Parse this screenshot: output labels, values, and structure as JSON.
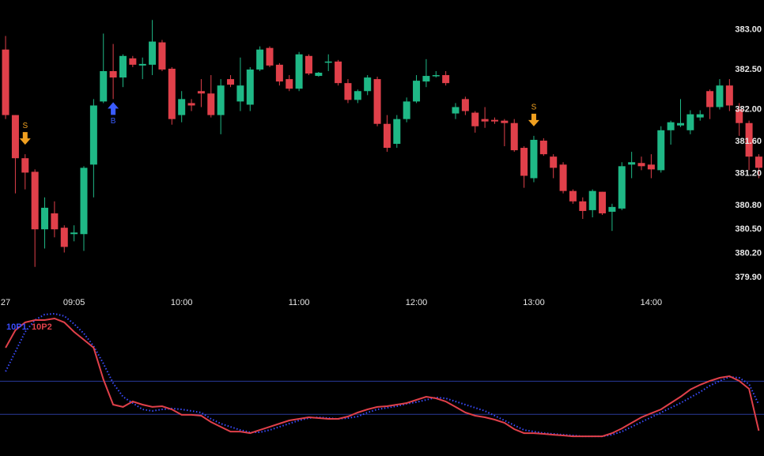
{
  "chart_data": [
    {
      "type": "candlestick",
      "open": [
        382.75,
        381.93,
        381.39,
        381.22,
        380.5,
        380.7,
        380.52,
        380.44,
        380.44,
        381.31,
        382.1,
        382.48,
        382.4,
        382.64,
        382.55,
        382.56,
        382.84,
        382.51,
        381.93,
        382.08,
        382.23,
        382.2,
        381.93,
        382.38,
        382.1,
        382.06,
        382.5,
        382.77,
        382.56,
        382.38,
        382.26,
        382.67,
        382.42,
        382.59,
        382.6,
        382.33,
        382.12,
        382.23,
        382.38,
        381.82,
        381.57,
        381.88,
        382.1,
        382.35,
        382.42,
        382.43,
        381.95,
        382.13,
        381.96,
        381.88,
        381.87,
        381.86,
        381.83,
        381.52,
        381.14,
        381.61,
        381.41,
        381.31,
        380.98,
        380.85,
        380.74,
        380.97,
        380.72,
        380.76,
        381.31,
        381.33,
        381.31,
        381.24,
        381.74,
        381.8,
        381.74,
        381.9,
        382.23,
        382.03,
        382.3,
        382.0,
        381.83,
        381.41
      ],
      "high": [
        382.92,
        381.93,
        381.44,
        381.25,
        380.9,
        380.85,
        380.55,
        380.55,
        381.29,
        382.13,
        382.95,
        382.82,
        382.69,
        382.67,
        382.65,
        383.12,
        382.87,
        382.53,
        382.23,
        382.13,
        382.38,
        382.43,
        382.38,
        382.43,
        382.65,
        382.53,
        382.79,
        382.79,
        382.58,
        382.43,
        382.72,
        382.69,
        382.47,
        382.69,
        382.62,
        382.38,
        382.25,
        382.43,
        382.41,
        381.93,
        381.93,
        382.15,
        382.43,
        382.63,
        382.48,
        382.48,
        382.08,
        382.16,
        381.98,
        382.03,
        381.9,
        381.88,
        381.88,
        381.54,
        381.67,
        381.64,
        381.44,
        381.34,
        381.0,
        380.9,
        381.0,
        380.97,
        380.82,
        381.34,
        381.47,
        381.41,
        381.44,
        381.79,
        381.86,
        382.13,
        381.99,
        381.99,
        382.25,
        382.38,
        382.38,
        382.08,
        381.86,
        381.44
      ],
      "low": [
        381.88,
        380.95,
        381.0,
        380.03,
        380.26,
        380.4,
        380.21,
        380.35,
        380.23,
        380.9,
        382.08,
        382.13,
        382.28,
        382.53,
        382.38,
        382.43,
        382.48,
        381.81,
        381.84,
        381.98,
        382.03,
        381.9,
        381.69,
        382.28,
        381.98,
        381.98,
        382.48,
        382.53,
        382.3,
        382.23,
        382.23,
        382.43,
        382.41,
        382.48,
        382.3,
        382.08,
        382.08,
        382.18,
        381.79,
        381.47,
        381.52,
        381.84,
        382.08,
        382.28,
        382.4,
        382.3,
        381.88,
        381.93,
        381.71,
        381.77,
        381.82,
        381.54,
        381.47,
        381.02,
        381.09,
        381.42,
        381.14,
        380.95,
        380.82,
        380.63,
        380.65,
        380.68,
        380.48,
        380.74,
        381.14,
        381.24,
        381.14,
        381.21,
        381.56,
        381.78,
        381.69,
        381.86,
        381.88,
        382.0,
        381.98,
        381.67,
        381.24,
        381.14
      ],
      "close": [
        381.93,
        381.39,
        381.21,
        380.5,
        380.77,
        380.5,
        380.28,
        380.46,
        381.27,
        382.05,
        382.48,
        382.4,
        382.67,
        382.56,
        382.57,
        382.85,
        382.5,
        381.88,
        382.13,
        382.05,
        382.2,
        381.93,
        382.3,
        382.31,
        382.3,
        382.5,
        382.75,
        382.55,
        382.35,
        382.26,
        382.69,
        382.45,
        382.46,
        382.6,
        382.33,
        382.12,
        382.23,
        382.4,
        381.82,
        381.52,
        381.88,
        382.1,
        382.36,
        382.42,
        382.43,
        382.33,
        382.03,
        381.98,
        381.79,
        381.85,
        381.85,
        381.83,
        381.49,
        381.17,
        381.62,
        381.44,
        381.27,
        380.98,
        380.85,
        380.73,
        380.98,
        380.7,
        380.78,
        381.29,
        381.34,
        381.29,
        381.25,
        381.74,
        381.84,
        381.83,
        381.94,
        381.94,
        382.03,
        382.3,
        382.05,
        381.83,
        381.41,
        381.27
      ],
      "up_color": "#1fb886",
      "down_color": "#e0404a",
      "xlim": [
        -0.57,
        77.53
      ],
      "xticks": [
        {
          "value": 0,
          "label": "27"
        },
        {
          "value": 7,
          "label": "09:05"
        },
        {
          "value": 18,
          "label": "10:00"
        },
        {
          "value": 30,
          "label": "11:00"
        },
        {
          "value": 42,
          "label": "12:00"
        },
        {
          "value": 54,
          "label": "13:00"
        },
        {
          "value": 66,
          "label": "14:00"
        }
      ],
      "ylim": [
        379.76,
        383.37
      ],
      "yticks": [
        {
          "value": 383,
          "label": "383.00"
        },
        {
          "value": 382.5,
          "label": "382.50"
        },
        {
          "value": 382,
          "label": "382.00"
        },
        {
          "value": 381.6,
          "label": "381.60"
        },
        {
          "value": 381.2,
          "label": "381.20"
        },
        {
          "value": 380.8,
          "label": "380.80"
        },
        {
          "value": 380.5,
          "label": "380.50"
        },
        {
          "value": 380.2,
          "label": "380.20"
        },
        {
          "value": 379.9,
          "label": "379.90"
        }
      ],
      "signals": [
        {
          "label": "S",
          "index": 2,
          "color": "#f0a020",
          "side": "sell"
        },
        {
          "label": "B",
          "index": 11,
          "color": "#3a5cff",
          "side": "buy"
        },
        {
          "label": "S",
          "index": 54,
          "color": "#f0a020",
          "side": "sell"
        }
      ]
    },
    {
      "type": "line",
      "ylim": [
        0,
        100
      ],
      "levels": [
        52,
        29
      ],
      "level_color": "#2a3a9a",
      "series": [
        {
          "name": "10P1",
          "color": "#3a4cff",
          "dotted": true,
          "values": [
            58.8,
            72.5,
            86.3,
            94.5,
            98.4,
            98.9,
            97.3,
            91.8,
            85.2,
            76.4,
            64.3,
            50.6,
            41.2,
            36.8,
            32.4,
            31.3,
            32.4,
            33.0,
            32.4,
            31.3,
            30.2,
            25.8,
            22.5,
            20.3,
            18.1,
            16.5,
            16.5,
            18.1,
            20.3,
            22.5,
            24.7,
            26.4,
            26.9,
            26.4,
            25.8,
            26.4,
            27.5,
            30.2,
            32.4,
            33.5,
            34.6,
            36.3,
            37.4,
            39.0,
            40.7,
            40.1,
            37.9,
            35.7,
            33.5,
            31.3,
            28.0,
            24.7,
            21.4,
            18.1,
            17.0,
            15.9,
            15.4,
            14.8,
            14.3,
            13.7,
            13.7,
            13.7,
            14.8,
            17.0,
            20.3,
            23.6,
            26.9,
            30.2,
            33.5,
            36.8,
            40.7,
            44.5,
            48.9,
            52.2,
            55.0,
            54.4,
            50.0,
            35.7
          ]
        },
        {
          "name": "10P2",
          "color": "#e0404a",
          "dotted": false,
          "values": [
            75.3,
            87.4,
            92.9,
            94.5,
            94.5,
            95.6,
            92.9,
            86.3,
            80.8,
            75.3,
            53.3,
            35.7,
            34.1,
            37.9,
            35.7,
            34.1,
            34.6,
            32.4,
            28.6,
            28.6,
            28.0,
            23.6,
            20.3,
            17.0,
            17.0,
            15.9,
            18.1,
            20.3,
            22.5,
            24.7,
            25.8,
            26.9,
            26.4,
            25.8,
            25.8,
            27.5,
            30.2,
            32.4,
            34.1,
            34.6,
            35.7,
            36.8,
            39.0,
            41.2,
            40.1,
            37.9,
            34.1,
            30.2,
            28.0,
            26.9,
            25.3,
            23.1,
            18.7,
            15.9,
            15.9,
            15.4,
            14.8,
            14.3,
            13.7,
            13.7,
            13.7,
            13.7,
            15.9,
            19.2,
            23.1,
            26.9,
            29.7,
            32.4,
            36.8,
            41.2,
            46.2,
            49.5,
            52.2,
            54.4,
            55.5,
            52.2,
            46.7,
            17.6
          ]
        }
      ]
    }
  ]
}
